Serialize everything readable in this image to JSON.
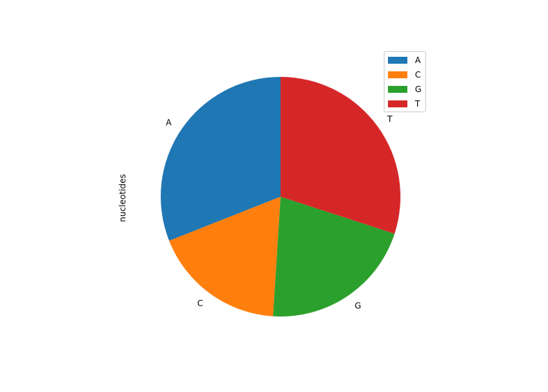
{
  "chart_data": {
    "type": "pie",
    "ylabel": "nucleotides",
    "categories": [
      "A",
      "C",
      "G",
      "T"
    ],
    "values": [
      31,
      18,
      21,
      30
    ],
    "colors": [
      "#1f77b4",
      "#ff7f0e",
      "#2ca02c",
      "#d62728"
    ],
    "start_angle_deg": 90,
    "direction": "counterclockwise",
    "legend": {
      "position": "top-right",
      "entries": [
        "A",
        "C",
        "G",
        "T"
      ]
    }
  }
}
